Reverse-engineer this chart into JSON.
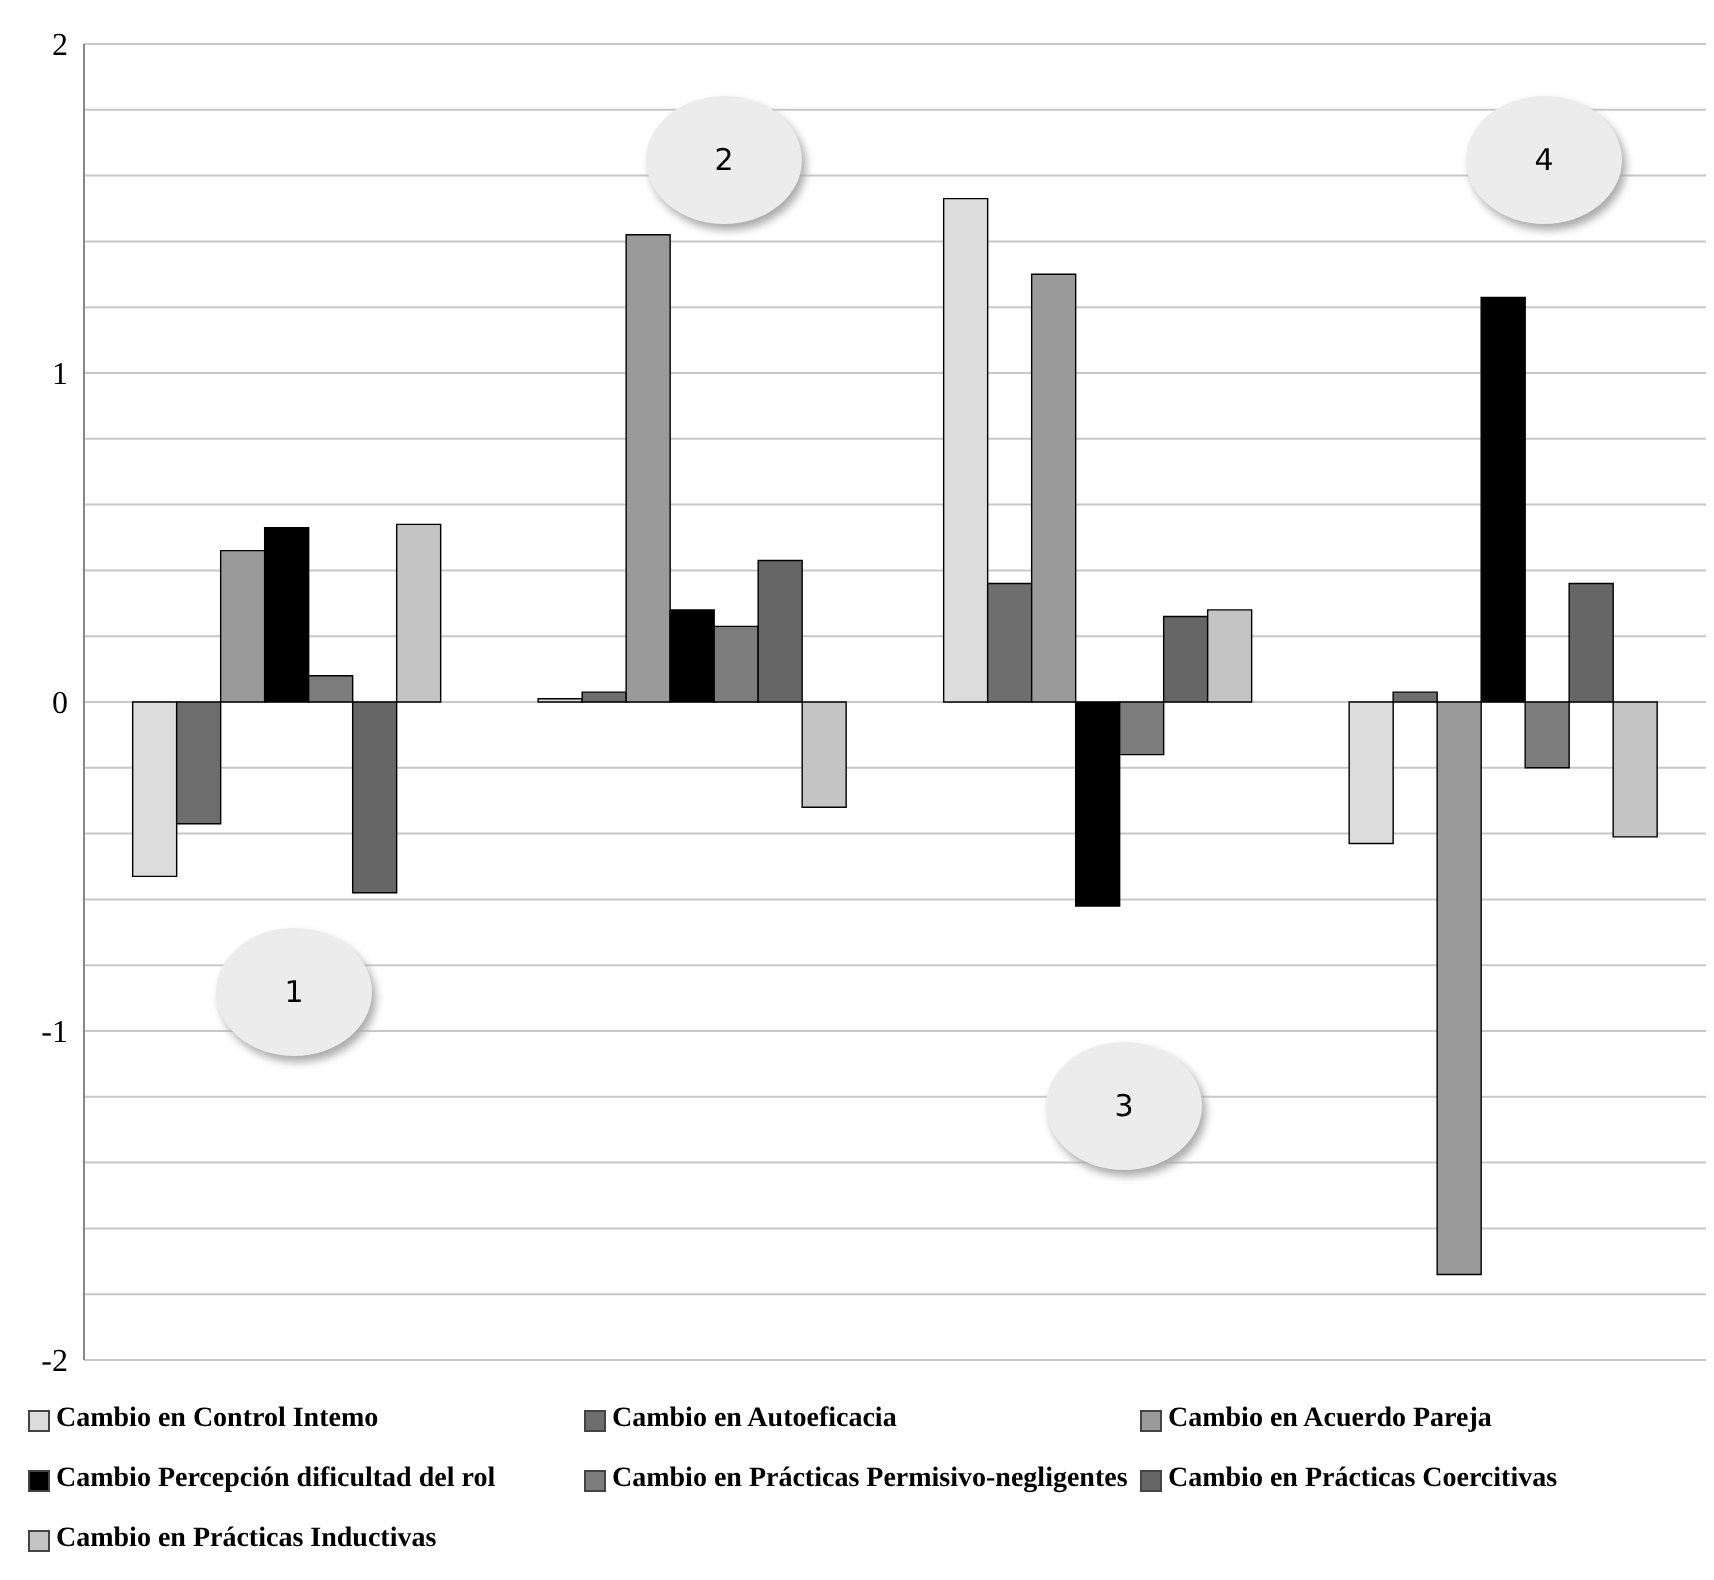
{
  "chart_data": {
    "type": "bar",
    "categories": [
      null,
      null,
      null,
      null
    ],
    "series": [
      {
        "name": "Cambio en Control Intemo",
        "color": "#dcdcdc",
        "values": [
          -0.53,
          0.01,
          1.53,
          -0.43
        ]
      },
      {
        "name": "Cambio en Autoeficacia",
        "color": "#6e6e6e",
        "values": [
          -0.37,
          0.03,
          0.36,
          0.03
        ]
      },
      {
        "name": "Cambio en Acuerdo Pareja",
        "color": "#9a9a9a",
        "values": [
          0.46,
          1.42,
          1.3,
          -1.74
        ]
      },
      {
        "name": "Cambio Percepción dificultad del rol",
        "color": "#000000",
        "values": [
          0.53,
          0.28,
          -0.62,
          1.23
        ]
      },
      {
        "name": "Cambio en Prácticas Permisivo-negligentes",
        "color": "#7c7c7c",
        "values": [
          0.08,
          0.23,
          -0.16,
          -0.2
        ]
      },
      {
        "name": "Cambio en Prácticas Coercitivas",
        "color": "#666666",
        "values": [
          -0.58,
          0.43,
          0.26,
          0.36
        ]
      },
      {
        "name": "Cambio en Prácticas Inductivas",
        "color": "#c4c4c4",
        "values": [
          0.54,
          -0.32,
          0.28,
          -0.41
        ]
      }
    ],
    "ylim": [
      -2,
      2
    ],
    "yticks": [
      -2,
      {
        "value": -1.8,
        "label": null
      },
      {
        "value": -1.6,
        "label": null
      },
      {
        "value": -1.4,
        "label": null
      },
      {
        "value": -1.2,
        "label": null
      },
      -1,
      {
        "value": -0.8,
        "label": null
      },
      {
        "value": -0.6,
        "label": null
      },
      {
        "value": -0.4,
        "label": null
      },
      {
        "value": -0.2,
        "label": null
      },
      0,
      {
        "value": 0.2,
        "label": null
      },
      {
        "value": 0.4,
        "label": null
      },
      {
        "value": 0.6,
        "label": null
      },
      {
        "value": 0.8,
        "label": null
      },
      1,
      {
        "value": 1.2,
        "label": null
      },
      {
        "value": 1.4,
        "label": null
      },
      {
        "value": 1.6,
        "label": null
      },
      {
        "value": 1.8,
        "label": null
      },
      2
    ],
    "grid": "y",
    "legend": "bottom",
    "tick_labels": "y",
    "annotations": [
      "1",
      "2",
      "3",
      "4"
    ]
  }
}
